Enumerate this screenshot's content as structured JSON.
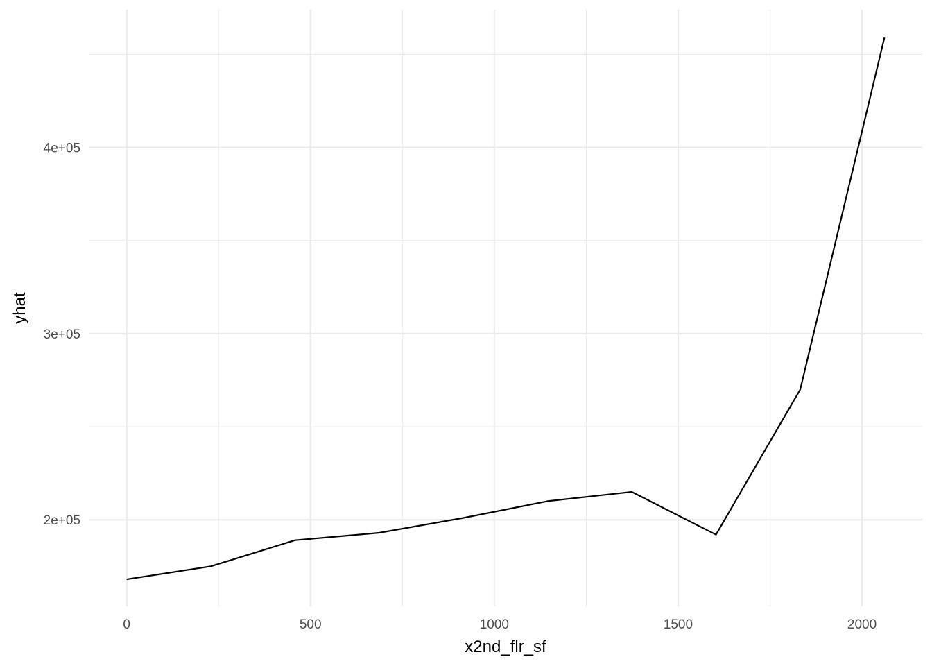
{
  "chart_data": {
    "type": "line",
    "title": "",
    "xlabel": "x2nd_flr_sf",
    "ylabel": "yhat",
    "x": [
      0,
      229,
      458,
      687,
      916,
      1145,
      1374,
      1603,
      1832,
      2061
    ],
    "series": [
      {
        "values": [
          168000,
          175000,
          189000,
          193000,
          201000,
          210000,
          215000,
          192000,
          270000,
          459000
        ]
      }
    ],
    "x_ticks": [
      0,
      500,
      1000,
      1500,
      2000
    ],
    "x_tick_labels": [
      "0",
      "500",
      "1000",
      "1500",
      "2000"
    ],
    "y_ticks": [
      200000,
      300000,
      400000
    ],
    "y_tick_labels": [
      "2e+05",
      "3e+05",
      "4e+05"
    ],
    "xlim": [
      -103,
      2164
    ],
    "ylim": [
      153500,
      474000
    ],
    "grid": true,
    "legend": "none",
    "line_color": "#000000"
  }
}
